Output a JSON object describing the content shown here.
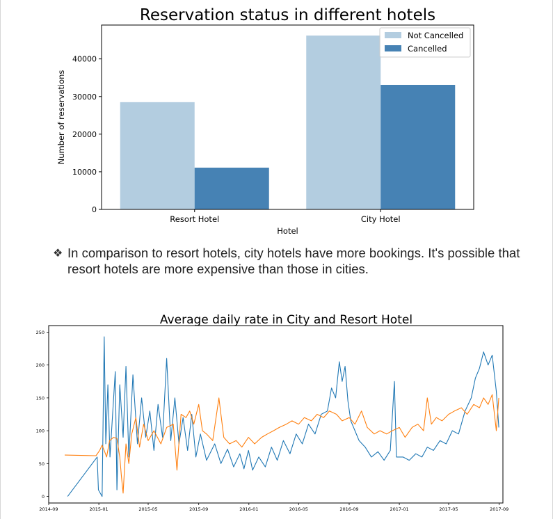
{
  "chart_data": [
    {
      "type": "bar",
      "title": "Reservation status in different hotels",
      "xlabel": "Hotel",
      "ylabel": "Number of reservations",
      "categories": [
        "Resort Hotel",
        "City Hotel"
      ],
      "series": [
        {
          "name": "Not Cancelled",
          "values": [
            28500,
            46200
          ],
          "color": "#b3cde0"
        },
        {
          "name": "Cancelled",
          "values": [
            11100,
            33100
          ],
          "color": "#4682b4"
        }
      ],
      "ylim": [
        0,
        49000
      ],
      "yticks": [
        "0",
        "10000",
        "20000",
        "30000",
        "40000"
      ],
      "ytick_values": [
        0,
        10000,
        20000,
        30000,
        40000
      ],
      "legend": "top-right",
      "grid": false
    },
    {
      "type": "line",
      "title": "Average daily rate in City and Resort Hotel",
      "xlabel": "",
      "ylabel": "",
      "xlim": [
        "2014-09-01",
        "2017-09-10"
      ],
      "ylim": [
        -10,
        260
      ],
      "xticks": [
        "2014-09",
        "2015-01",
        "2015-05",
        "2015-09",
        "2016-01",
        "2016-05",
        "2016-09",
        "2017-01",
        "2017-05",
        "2017-09"
      ],
      "xtick_dates": [
        "2014-09-01",
        "2015-01-01",
        "2015-05-01",
        "2015-09-01",
        "2016-01-01",
        "2016-05-01",
        "2016-09-01",
        "2017-01-01",
        "2017-05-01",
        "2017-09-01"
      ],
      "yticks": [
        "0",
        "50",
        "100",
        "150",
        "200",
        "250"
      ],
      "ytick_values": [
        0,
        50,
        100,
        150,
        200,
        250
      ],
      "grid": false,
      "series": [
        {
          "color": "#1f77b4",
          "points": [
            [
              "2014-10-17",
              0
            ],
            [
              "2014-12-28",
              60
            ],
            [
              "2014-12-31",
              10
            ],
            [
              "2015-01-09",
              0
            ],
            [
              "2015-01-14",
              243
            ],
            [
              "2015-01-18",
              80
            ],
            [
              "2015-01-23",
              170
            ],
            [
              "2015-01-28",
              60
            ],
            [
              "2015-02-03",
              120
            ],
            [
              "2015-02-10",
              190
            ],
            [
              "2015-02-14",
              10
            ],
            [
              "2015-02-21",
              170
            ],
            [
              "2015-03-01",
              90
            ],
            [
              "2015-03-08",
              198
            ],
            [
              "2015-03-15",
              60
            ],
            [
              "2015-03-25",
              185
            ],
            [
              "2015-04-05",
              80
            ],
            [
              "2015-04-15",
              150
            ],
            [
              "2015-04-25",
              90
            ],
            [
              "2015-05-05",
              130
            ],
            [
              "2015-05-15",
              70
            ],
            [
              "2015-05-25",
              140
            ],
            [
              "2015-06-05",
              90
            ],
            [
              "2015-06-15",
              210
            ],
            [
              "2015-06-25",
              85
            ],
            [
              "2015-07-05",
              150
            ],
            [
              "2015-07-15",
              80
            ],
            [
              "2015-07-25",
              120
            ],
            [
              "2015-08-05",
              70
            ],
            [
              "2015-08-15",
              125
            ],
            [
              "2015-08-25",
              60
            ],
            [
              "2015-09-05",
              95
            ],
            [
              "2015-09-20",
              55
            ],
            [
              "2015-10-10",
              80
            ],
            [
              "2015-10-25",
              50
            ],
            [
              "2015-11-10",
              72
            ],
            [
              "2015-11-25",
              45
            ],
            [
              "2015-12-10",
              65
            ],
            [
              "2015-12-20",
              42
            ],
            [
              "2015-12-31",
              70
            ],
            [
              "2016-01-10",
              40
            ],
            [
              "2016-01-25",
              60
            ],
            [
              "2016-02-10",
              45
            ],
            [
              "2016-02-25",
              75
            ],
            [
              "2016-03-10",
              55
            ],
            [
              "2016-03-25",
              85
            ],
            [
              "2016-04-10",
              65
            ],
            [
              "2016-04-25",
              95
            ],
            [
              "2016-05-10",
              80
            ],
            [
              "2016-05-25",
              110
            ],
            [
              "2016-06-10",
              95
            ],
            [
              "2016-06-25",
              125
            ],
            [
              "2016-07-10",
              130
            ],
            [
              "2016-07-20",
              165
            ],
            [
              "2016-07-30",
              150
            ],
            [
              "2016-08-08",
              205
            ],
            [
              "2016-08-15",
              175
            ],
            [
              "2016-08-22",
              198
            ],
            [
              "2016-08-29",
              145
            ],
            [
              "2016-09-05",
              115
            ],
            [
              "2016-09-15",
              100
            ],
            [
              "2016-09-25",
              85
            ],
            [
              "2016-10-10",
              75
            ],
            [
              "2016-10-25",
              60
            ],
            [
              "2016-11-10",
              68
            ],
            [
              "2016-11-25",
              55
            ],
            [
              "2016-12-10",
              70
            ],
            [
              "2016-12-20",
              175
            ],
            [
              "2016-12-25",
              60
            ],
            [
              "2017-01-10",
              60
            ],
            [
              "2017-01-25",
              55
            ],
            [
              "2017-02-10",
              65
            ],
            [
              "2017-02-25",
              60
            ],
            [
              "2017-03-10",
              75
            ],
            [
              "2017-03-25",
              70
            ],
            [
              "2017-04-10",
              85
            ],
            [
              "2017-04-25",
              80
            ],
            [
              "2017-05-10",
              100
            ],
            [
              "2017-05-25",
              95
            ],
            [
              "2017-06-10",
              130
            ],
            [
              "2017-06-25",
              150
            ],
            [
              "2017-07-05",
              180
            ],
            [
              "2017-07-15",
              195
            ],
            [
              "2017-07-25",
              220
            ],
            [
              "2017-08-05",
              200
            ],
            [
              "2017-08-15",
              215
            ],
            [
              "2017-08-25",
              160
            ],
            [
              "2017-08-31",
              105
            ]
          ]
        },
        {
          "color": "#ff7f0e",
          "points": [
            [
              "2014-10-10",
              63
            ],
            [
              "2014-12-25",
              62
            ],
            [
              "2015-01-03",
              70
            ],
            [
              "2015-01-09",
              78
            ],
            [
              "2015-01-14",
              70
            ],
            [
              "2015-01-20",
              60
            ],
            [
              "2015-01-27",
              85
            ],
            [
              "2015-02-06",
              90
            ],
            [
              "2015-02-14",
              88
            ],
            [
              "2015-02-21",
              60
            ],
            [
              "2015-02-25",
              30
            ],
            [
              "2015-03-01",
              5
            ],
            [
              "2015-03-08",
              80
            ],
            [
              "2015-03-15",
              50
            ],
            [
              "2015-03-22",
              95
            ],
            [
              "2015-04-01",
              120
            ],
            [
              "2015-04-10",
              75
            ],
            [
              "2015-04-20",
              110
            ],
            [
              "2015-05-01",
              85
            ],
            [
              "2015-05-15",
              100
            ],
            [
              "2015-06-01",
              80
            ],
            [
              "2015-06-15",
              105
            ],
            [
              "2015-07-01",
              110
            ],
            [
              "2015-07-10",
              40
            ],
            [
              "2015-07-20",
              125
            ],
            [
              "2015-08-01",
              120
            ],
            [
              "2015-08-10",
              130
            ],
            [
              "2015-08-20",
              110
            ],
            [
              "2015-09-01",
              140
            ],
            [
              "2015-09-10",
              100
            ],
            [
              "2015-09-20",
              95
            ],
            [
              "2015-10-05",
              85
            ],
            [
              "2015-10-20",
              150
            ],
            [
              "2015-11-01",
              90
            ],
            [
              "2015-11-15",
              80
            ],
            [
              "2015-12-01",
              85
            ],
            [
              "2015-12-15",
              75
            ],
            [
              "2015-12-31",
              90
            ],
            [
              "2016-01-15",
              80
            ],
            [
              "2016-02-01",
              90
            ],
            [
              "2016-02-15",
              95
            ],
            [
              "2016-03-01",
              100
            ],
            [
              "2016-03-15",
              105
            ],
            [
              "2016-04-01",
              110
            ],
            [
              "2016-04-15",
              115
            ],
            [
              "2016-05-01",
              110
            ],
            [
              "2016-05-15",
              120
            ],
            [
              "2016-06-01",
              115
            ],
            [
              "2016-06-15",
              125
            ],
            [
              "2016-07-01",
              120
            ],
            [
              "2016-07-15",
              130
            ],
            [
              "2016-08-01",
              125
            ],
            [
              "2016-08-15",
              115
            ],
            [
              "2016-09-01",
              120
            ],
            [
              "2016-09-15",
              110
            ],
            [
              "2016-10-01",
              130
            ],
            [
              "2016-10-15",
              105
            ],
            [
              "2016-11-01",
              95
            ],
            [
              "2016-11-15",
              100
            ],
            [
              "2016-12-01",
              95
            ],
            [
              "2016-12-15",
              100
            ],
            [
              "2017-01-01",
              105
            ],
            [
              "2017-01-15",
              90
            ],
            [
              "2017-02-01",
              105
            ],
            [
              "2017-02-15",
              110
            ],
            [
              "2017-03-01",
              100
            ],
            [
              "2017-03-10",
              150
            ],
            [
              "2017-03-20",
              110
            ],
            [
              "2017-04-01",
              120
            ],
            [
              "2017-04-15",
              115
            ],
            [
              "2017-05-01",
              125
            ],
            [
              "2017-05-15",
              130
            ],
            [
              "2017-06-01",
              135
            ],
            [
              "2017-06-15",
              125
            ],
            [
              "2017-07-01",
              140
            ],
            [
              "2017-07-15",
              135
            ],
            [
              "2017-07-25",
              150
            ],
            [
              "2017-08-05",
              140
            ],
            [
              "2017-08-15",
              155
            ],
            [
              "2017-08-25",
              100
            ],
            [
              "2017-08-31",
              150
            ]
          ]
        }
      ]
    }
  ],
  "notes": {
    "bullet_glyph": "❖",
    "bullet_text": "In comparison to resort hotels, city hotels have more bookings. It's possible that resort hotels are more expensive than those in cities."
  }
}
